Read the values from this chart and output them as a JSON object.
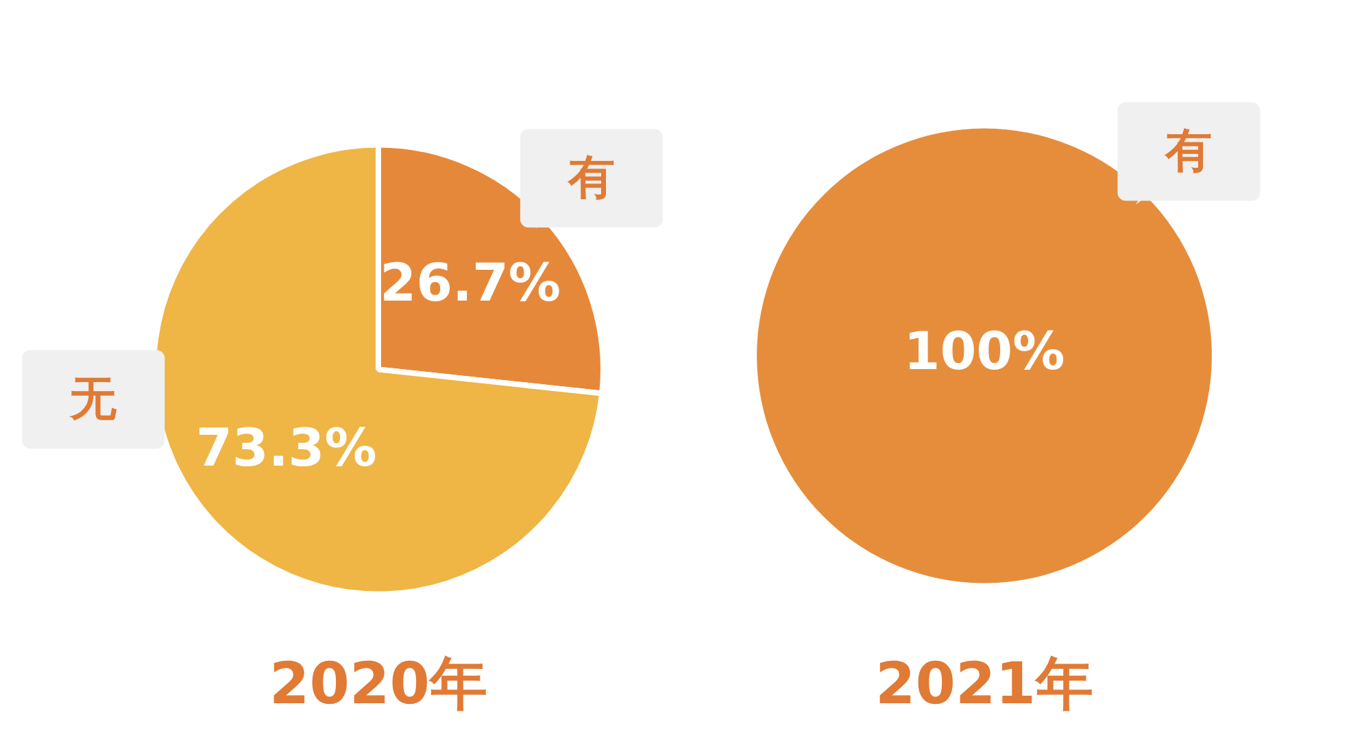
{
  "chart_data": [
    {
      "type": "pie",
      "title": "2020年",
      "categories": [
        "有",
        "无"
      ],
      "values": [
        26.7,
        73.3
      ],
      "colors": [
        "#e6883a",
        "#efb545"
      ],
      "value_labels": [
        "26.7%",
        "73.3%"
      ],
      "legend": false
    },
    {
      "type": "pie",
      "title": "2021年",
      "categories": [
        "有"
      ],
      "values": [
        100
      ],
      "colors": [
        "#e68d3b"
      ],
      "value_labels": [
        "100%"
      ],
      "legend": false
    }
  ]
}
